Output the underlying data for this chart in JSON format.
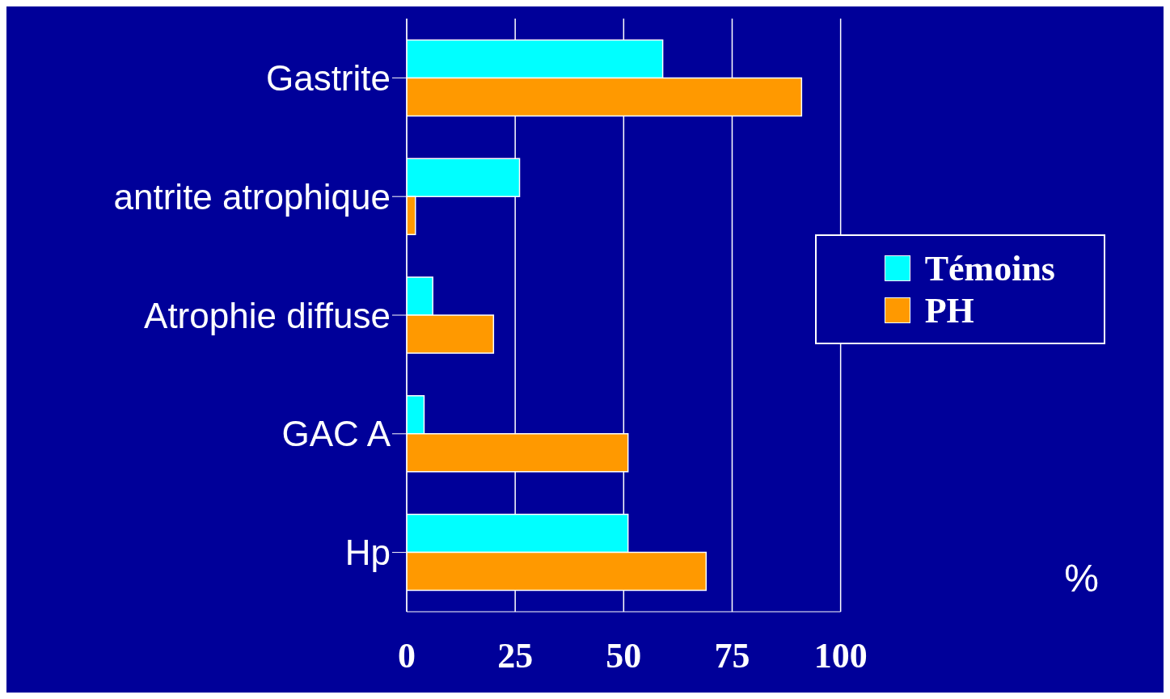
{
  "chart_data": {
    "type": "bar",
    "orientation": "horizontal",
    "categories": [
      "Gastrite",
      "antrite atrophique",
      "Atrophie diffuse",
      "GAC A",
      "Hp"
    ],
    "series": [
      {
        "name": "Témoins",
        "color": "#00ffff",
        "values": [
          59,
          26,
          6,
          4,
          51
        ]
      },
      {
        "name": "PH",
        "color": "#ff9900",
        "values": [
          91,
          2,
          20,
          51,
          69
        ]
      }
    ],
    "xlim": [
      0,
      100
    ],
    "xticks": [
      0,
      25,
      50,
      75,
      100
    ],
    "grid": "x",
    "legend": "right",
    "annotations": [
      "%"
    ]
  }
}
